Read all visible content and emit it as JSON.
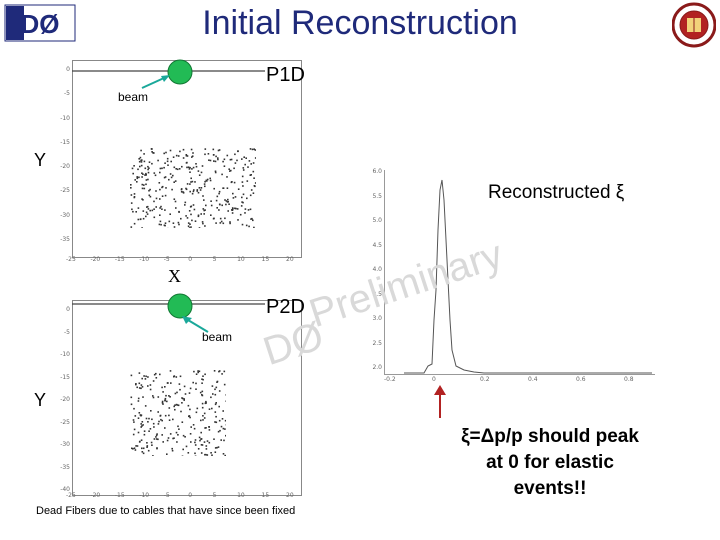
{
  "title": "Initial Reconstruction",
  "logo_left": {
    "icon": "d0-logo-icon",
    "text": "DØ"
  },
  "logo_right": {
    "icon": "university-seal-icon"
  },
  "plot_p1d": {
    "label": "P1D",
    "beam_label": "beam",
    "y_axis_letter": "Y",
    "x_axis_letter": "X",
    "y_ticks": [
      "0",
      "-5",
      "-10",
      "-15",
      "-20",
      "-25",
      "-30",
      "-35"
    ],
    "x_ticks": [
      "-25",
      "-20",
      "-15",
      "-10",
      "-5",
      "0",
      "5",
      "10",
      "15",
      "20"
    ]
  },
  "plot_p2d": {
    "label": "P2D",
    "beam_label": "beam",
    "y_axis_letter": "Y",
    "y_ticks": [
      "0",
      "-5",
      "-10",
      "-15",
      "-20",
      "-25",
      "-30",
      "-35",
      "-40"
    ],
    "x_ticks": [
      "-25",
      "-20",
      "-15",
      "-10",
      "-5",
      "0",
      "5",
      "10",
      "15",
      "20"
    ]
  },
  "histogram": {
    "label": "Reconstructed ξ",
    "y_ticks": [
      "6.0",
      "5.5",
      "5.0",
      "4.5",
      "4.0",
      "3.5",
      "3.0",
      "2.5",
      "2.0"
    ],
    "x_ticks": [
      "-0.2",
      "0",
      "0.2",
      "0.4",
      "0.6",
      "0.8"
    ]
  },
  "watermark": {
    "line1": "Preliminary",
    "line2": "DØ"
  },
  "note": {
    "line1": "ξ=Δp/p should peak",
    "line2": "at 0 for elastic",
    "line3": "events!!"
  },
  "caption": "Dead Fibers due to cables that have since been fixed",
  "colors": {
    "title": "#1f2a7a",
    "circle": "#22bb55",
    "arrow": "#1aa89a",
    "watermark": "#d9d9d9"
  }
}
